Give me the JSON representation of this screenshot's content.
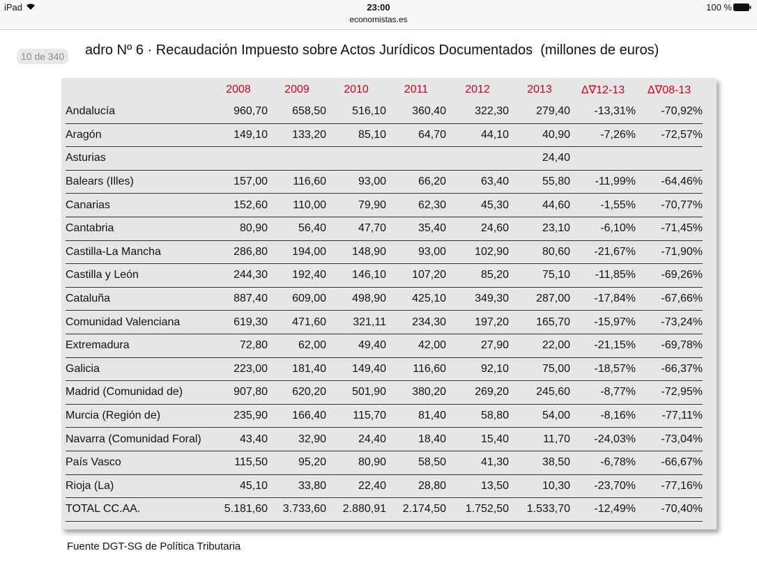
{
  "status_bar": {
    "device": "iPad",
    "time": "23:00",
    "url": "economistas.es",
    "battery": "100 %"
  },
  "page_badge": "10 de 340",
  "document": {
    "title": "adro Nº 6 · Recaudación Impuesto sobre Actos Jurídicos Documentados  (millones de euros)",
    "table": {
      "columns": [
        "2008",
        "2009",
        "2010",
        "2011",
        "2012",
        "2013",
        "Δ∇12-13",
        "Δ∇08-13"
      ],
      "rows": [
        [
          "Andalucía",
          "960,70",
          "658,50",
          "516,10",
          "360,40",
          "322,30",
          "279,40",
          "-13,31%",
          "-70,92%"
        ],
        [
          "Aragón",
          "149,10",
          "133,20",
          "85,10",
          "64,70",
          "44,10",
          "40,90",
          "-7,26%",
          "-72,57%"
        ],
        [
          "Asturias",
          null,
          null,
          null,
          null,
          null,
          "24,40",
          null,
          null
        ],
        [
          "Balears (Illes)",
          "157,00",
          "116,60",
          "93,00",
          "66,20",
          "63,40",
          "55,80",
          "-11,99%",
          "-64,46%"
        ],
        [
          "Canarias",
          "152,60",
          "110,00",
          "79,90",
          "62,30",
          "45,30",
          "44,60",
          "-1,55%",
          "-70,77%"
        ],
        [
          "Cantabria",
          "80,90",
          "56,40",
          "47,70",
          "35,40",
          "24,60",
          "23,10",
          "-6,10%",
          "-71,45%"
        ],
        [
          "Castilla-La Mancha",
          "286,80",
          "194,00",
          "148,90",
          "93,00",
          "102,90",
          "80,60",
          "-21,67%",
          "-71,90%"
        ],
        [
          "Castilla y León",
          "244,30",
          "192,40",
          "146,10",
          "107,20",
          "85,20",
          "75,10",
          "-11,85%",
          "-69,26%"
        ],
        [
          "Cataluña",
          "887,40",
          "609,00",
          "498,90",
          "425,10",
          "349,30",
          "287,00",
          "-17,84%",
          "-67,66%"
        ],
        [
          "Comunidad Valenciana",
          "619,30",
          "471,60",
          "321,11",
          "234,30",
          "197,20",
          "165,70",
          "-15,97%",
          "-73,24%"
        ],
        [
          "Extremadura",
          "72,80",
          "62,00",
          "49,40",
          "42,00",
          "27,90",
          "22,00",
          "-21,15%",
          "-69,78%"
        ],
        [
          "Galicia",
          "223,00",
          "181,40",
          "149,40",
          "116,60",
          "92,10",
          "75,00",
          "-18,57%",
          "-66,37%"
        ],
        [
          "Madrid (Comunidad de)",
          "907,80",
          "620,20",
          "501,90",
          "380,20",
          "269,20",
          "245,60",
          "-8,77%",
          "-72,95%"
        ],
        [
          "Murcia (Región de)",
          "235,90",
          "166,40",
          "115,70",
          "81,40",
          "58,80",
          "54,00",
          "-8,16%",
          "-77,11%"
        ],
        [
          "Navarra (Comunidad Foral)",
          "43,40",
          "32,90",
          "24,40",
          "18,40",
          "15,40",
          "11,70",
          "-24,03%",
          "-73,04%"
        ],
        [
          "País Vasco",
          "115,50",
          "95,20",
          "80,90",
          "58,50",
          "41,30",
          "38,50",
          "-6,78%",
          "-66,67%"
        ],
        [
          "Rioja (La)",
          "45,10",
          "33,80",
          "22,40",
          "28,80",
          "13,50",
          "10,30",
          "-23,70%",
          "-77,16%"
        ]
      ],
      "total": [
        "TOTAL CC.AA.",
        "5.181,60",
        "3.733,60",
        "2.880,91",
        "2.174,50",
        "1.752,50",
        "1.533,70",
        "-12,49%",
        "-70,40%"
      ]
    },
    "source": "Fuente DGT-SG de Política Tributaria"
  }
}
